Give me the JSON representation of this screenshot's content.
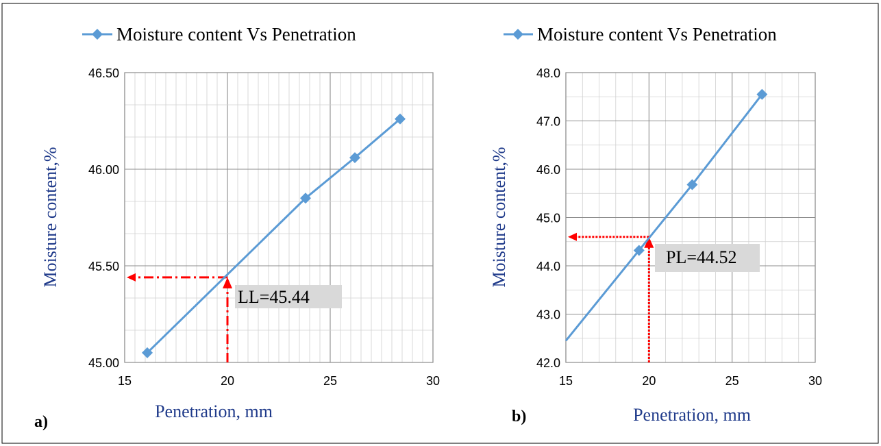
{
  "panels": [
    {
      "label": "a)",
      "chart_data": {
        "type": "line",
        "title": "",
        "xlabel": "Penetration, mm",
        "ylabel": "Moisture content,%",
        "xlim": [
          15,
          30
        ],
        "ylim": [
          45.0,
          46.5
        ],
        "x_ticks": [
          "15",
          "20",
          "25",
          "30"
        ],
        "y_ticks": [
          "45.00",
          "45.50",
          "46.00",
          "46.50"
        ],
        "grid": true,
        "legend": "top",
        "series": [
          {
            "name": "Moisture content Vs Penetration",
            "color": "#5b9bd5",
            "x": [
              16.1,
              23.8,
              26.2,
              28.4
            ],
            "y": [
              45.05,
              45.85,
              46.06,
              46.26
            ]
          }
        ],
        "annotation": {
          "text": "LL=45.44",
          "x": 20,
          "y": 45.44,
          "line_color": "#ff0000"
        }
      }
    },
    {
      "label": "b)",
      "chart_data": {
        "type": "line",
        "title": "",
        "xlabel": "Penetration, mm",
        "ylabel": "Moisture content,%",
        "xlim": [
          15,
          30
        ],
        "ylim": [
          42.0,
          48.0
        ],
        "x_ticks": [
          "15",
          "20",
          "25",
          "30"
        ],
        "y_ticks": [
          "42.0",
          "43.0",
          "44.0",
          "45.0",
          "46.0",
          "47.0",
          "48.0"
        ],
        "grid": true,
        "legend": "top",
        "series": [
          {
            "name": "Moisture content Vs Penetration",
            "color": "#5b9bd5",
            "x": [
              19.4,
              22.6,
              26.8
            ],
            "y": [
              44.32,
              45.68,
              47.55
            ]
          }
        ],
        "annotation": {
          "text": "PL=44.52",
          "x": 20,
          "y": 44.6,
          "line_color": "#ff0000"
        }
      }
    }
  ]
}
